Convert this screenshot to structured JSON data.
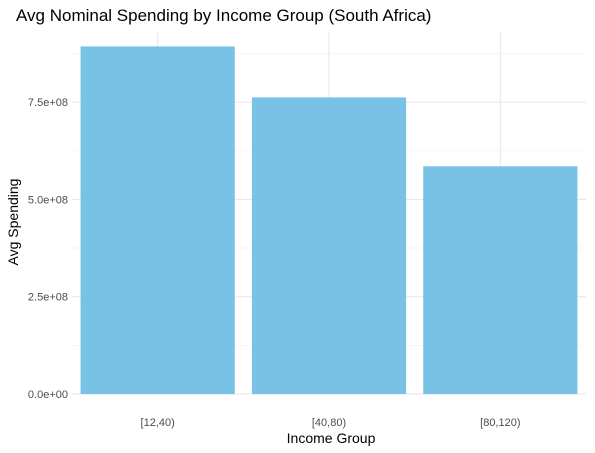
{
  "chart_data": {
    "type": "bar",
    "title": "Avg Nominal Spending by Income Group (South Africa)",
    "xlabel": "Income Group",
    "ylabel": "Avg Spending",
    "categories": [
      "[12,40)",
      "[40,80)",
      "[80,120)"
    ],
    "values": [
      893000000,
      762000000,
      585000000
    ],
    "ylim": [
      0,
      930000000
    ],
    "yticks": [
      0,
      250000000,
      500000000,
      750000000
    ],
    "ytick_labels": [
      "0.0e+00",
      "2.5e+08",
      "5.0e+08",
      "7.5e+08"
    ],
    "bar_color": "#78C2E5",
    "grid": true,
    "legend": "none"
  }
}
